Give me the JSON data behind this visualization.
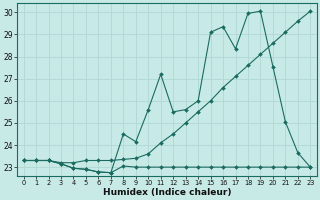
{
  "xlabel": "Humidex (Indice chaleur)",
  "bg_color": "#c8eae6",
  "grid_color": "#b0d8d4",
  "line_color": "#1a6b60",
  "ylim": [
    22.6,
    30.4
  ],
  "xlim": [
    -0.5,
    23.5
  ],
  "yticks": [
    23,
    24,
    25,
    26,
    27,
    28,
    29,
    30
  ],
  "xticks": [
    0,
    1,
    2,
    3,
    4,
    5,
    6,
    7,
    8,
    9,
    10,
    11,
    12,
    13,
    14,
    15,
    16,
    17,
    18,
    19,
    20,
    21,
    22,
    23
  ],
  "line1_x": [
    0,
    1,
    2,
    3,
    4,
    5,
    6,
    7,
    8,
    9,
    10,
    11,
    12,
    13,
    14,
    15,
    16,
    17,
    18,
    19,
    20,
    21,
    22,
    23
  ],
  "line1_y": [
    23.3,
    23.3,
    23.3,
    23.15,
    22.95,
    22.9,
    22.78,
    22.75,
    23.05,
    23.0,
    23.0,
    23.0,
    23.0,
    23.0,
    23.0,
    23.0,
    23.0,
    23.0,
    23.0,
    23.0,
    23.0,
    23.0,
    23.0,
    23.0
  ],
  "line2_x": [
    0,
    1,
    2,
    3,
    4,
    5,
    6,
    7,
    8,
    9,
    10,
    11,
    12,
    13,
    14,
    15,
    16,
    17,
    18,
    19,
    20,
    21,
    22,
    23
  ],
  "line2_y": [
    23.3,
    23.3,
    23.3,
    23.2,
    23.2,
    23.3,
    23.3,
    23.3,
    23.35,
    23.4,
    23.6,
    24.1,
    24.5,
    25.0,
    25.5,
    26.0,
    26.6,
    27.1,
    27.6,
    28.1,
    28.6,
    29.1,
    29.6,
    30.05
  ],
  "line3_x": [
    0,
    1,
    2,
    3,
    4,
    5,
    6,
    7,
    8,
    9,
    10,
    11,
    12,
    13,
    14,
    15,
    16,
    17,
    18,
    19,
    20,
    21,
    22,
    23
  ],
  "line3_y": [
    23.3,
    23.3,
    23.3,
    23.15,
    22.95,
    22.9,
    22.78,
    22.75,
    24.5,
    24.15,
    25.6,
    27.2,
    25.5,
    25.6,
    26.0,
    29.1,
    29.35,
    28.35,
    29.95,
    30.05,
    27.55,
    25.05,
    23.65,
    23.0
  ]
}
